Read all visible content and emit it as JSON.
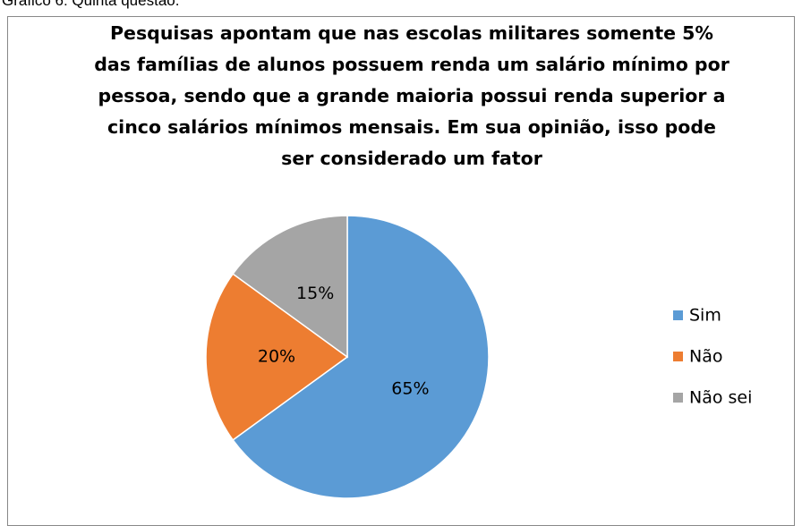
{
  "caption": "Gráfico 6: Quinta questão.",
  "chart_data": {
    "type": "pie",
    "title": "Pesquisas apontam que nas escolas militares somente 5% das famílias de alunos possuem renda um salário mínimo por pessoa, sendo que a grande maioria possui renda superior a cinco salários mínimos mensais. Em sua opinião, isso pode ser considerado um fator",
    "categories": [
      "Sim",
      "Não",
      "Não sei"
    ],
    "values": [
      65,
      20,
      15
    ],
    "value_labels": [
      "65%",
      "20%",
      "15%"
    ],
    "colors": [
      "#5b9bd5",
      "#ed7d31",
      "#a5a5a5"
    ],
    "legend": "right"
  }
}
